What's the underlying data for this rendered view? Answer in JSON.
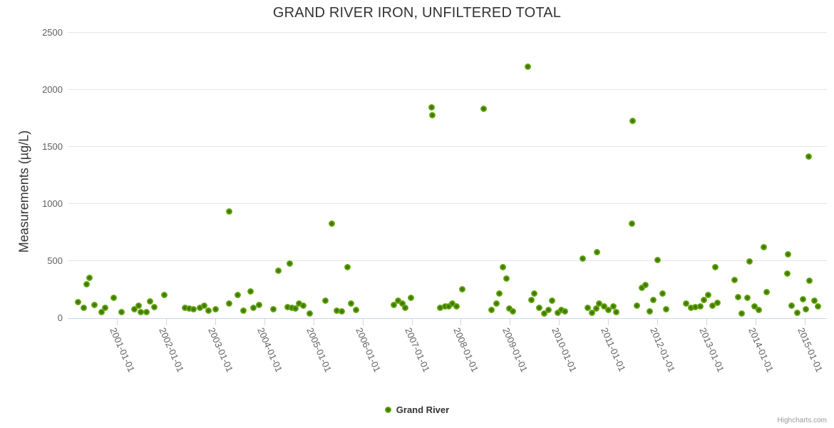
{
  "credits": {
    "label": "Highcharts.com"
  },
  "colors": {
    "marker_outer": "#7fbe1e",
    "marker_core": "#2d6a02",
    "gridline": "#e6e6e6",
    "axis_line": "#ccd6eb",
    "title_text": "#333333",
    "tick_label_text": "#606060",
    "credits_text": "#999999"
  },
  "chart_data": {
    "type": "scatter",
    "title": "GRAND RIVER IRON, UNFILTERED TOTAL",
    "xlabel": "",
    "ylabel": "Measurements (µg/L)",
    "ylim": [
      0,
      2500
    ],
    "y_ticks": [
      0,
      500,
      1000,
      1500,
      2000,
      2500
    ],
    "x_tick_labels": [
      "2001-01-01",
      "2002-01-01",
      "2003-01-01",
      "2004-01-01",
      "2005-01-01",
      "2006-01-01",
      "2007-01-01",
      "2008-01-01",
      "2009-01-01",
      "2010-01-01",
      "2011-01-01",
      "2012-01-01",
      "2013-01-01",
      "2014-01-01",
      "2015-01-01"
    ],
    "x_tick_years": [
      2001,
      2002,
      2003,
      2004,
      2005,
      2006,
      2007,
      2008,
      2009,
      2010,
      2011,
      2012,
      2013,
      2014,
      2015
    ],
    "x_range_years": [
      2000.0,
      15.45
    ],
    "grid": "horizontal",
    "legend": {
      "position": "bottom",
      "series_name": "Grand River"
    },
    "series": [
      {
        "name": "Grand River",
        "points": [
          [
            2000.21,
            135
          ],
          [
            2000.33,
            85
          ],
          [
            2000.39,
            290
          ],
          [
            2000.44,
            350
          ],
          [
            2000.55,
            110
          ],
          [
            2000.69,
            50
          ],
          [
            2000.76,
            85
          ],
          [
            2000.94,
            175
          ],
          [
            2001.1,
            50
          ],
          [
            2001.36,
            75
          ],
          [
            2001.44,
            105
          ],
          [
            2001.49,
            50
          ],
          [
            2001.61,
            48
          ],
          [
            2001.68,
            140
          ],
          [
            2001.76,
            88
          ],
          [
            2001.97,
            200
          ],
          [
            2002.39,
            83
          ],
          [
            2002.48,
            77
          ],
          [
            2002.56,
            72
          ],
          [
            2002.69,
            83
          ],
          [
            2002.78,
            104
          ],
          [
            2002.87,
            58
          ],
          [
            2003.01,
            69
          ],
          [
            2003.28,
            125
          ],
          [
            2003.29,
            930
          ],
          [
            2003.46,
            200
          ],
          [
            2003.58,
            58
          ],
          [
            2003.72,
            230
          ],
          [
            2003.78,
            83
          ],
          [
            2003.9,
            110
          ],
          [
            2004.19,
            69
          ],
          [
            2004.29,
            410
          ],
          [
            2004.47,
            89
          ],
          [
            2004.52,
            475
          ],
          [
            2004.56,
            83
          ],
          [
            2004.63,
            77
          ],
          [
            2004.71,
            120
          ],
          [
            2004.79,
            104
          ],
          [
            2004.93,
            36
          ],
          [
            2005.24,
            150
          ],
          [
            2005.37,
            820
          ],
          [
            2005.48,
            58
          ],
          [
            2005.58,
            52
          ],
          [
            2005.7,
            440
          ],
          [
            2005.76,
            120
          ],
          [
            2005.87,
            63
          ],
          [
            2006.63,
            110
          ],
          [
            2006.72,
            145
          ],
          [
            2006.81,
            121
          ],
          [
            2006.87,
            83
          ],
          [
            2006.98,
            175
          ],
          [
            2007.41,
            1840
          ],
          [
            2007.42,
            1770
          ],
          [
            2007.58,
            83
          ],
          [
            2007.68,
            98
          ],
          [
            2007.75,
            94
          ],
          [
            2007.82,
            120
          ],
          [
            2007.92,
            100
          ],
          [
            2008.03,
            245
          ],
          [
            2008.46,
            1830
          ],
          [
            2008.63,
            63
          ],
          [
            2008.72,
            123
          ],
          [
            2008.79,
            208
          ],
          [
            2008.85,
            440
          ],
          [
            2008.93,
            340
          ],
          [
            2008.99,
            77
          ],
          [
            2009.06,
            52
          ],
          [
            2009.37,
            2200
          ],
          [
            2009.43,
            155
          ],
          [
            2009.5,
            210
          ],
          [
            2009.59,
            83
          ],
          [
            2009.7,
            36
          ],
          [
            2009.78,
            63
          ],
          [
            2009.86,
            145
          ],
          [
            2009.97,
            42
          ],
          [
            2010.05,
            63
          ],
          [
            2010.12,
            52
          ],
          [
            2010.48,
            515
          ],
          [
            2010.59,
            83
          ],
          [
            2010.67,
            42
          ],
          [
            2010.76,
            77
          ],
          [
            2010.77,
            575
          ],
          [
            2010.82,
            125
          ],
          [
            2010.91,
            94
          ],
          [
            2011.0,
            63
          ],
          [
            2011.1,
            100
          ],
          [
            2011.17,
            46
          ],
          [
            2011.48,
            820
          ],
          [
            2011.49,
            1720
          ],
          [
            2011.58,
            105
          ],
          [
            2011.68,
            260
          ],
          [
            2011.76,
            285
          ],
          [
            2011.85,
            52
          ],
          [
            2011.92,
            155
          ],
          [
            2012.01,
            505
          ],
          [
            2012.1,
            210
          ],
          [
            2012.18,
            73
          ],
          [
            2012.59,
            120
          ],
          [
            2012.68,
            83
          ],
          [
            2012.78,
            90
          ],
          [
            2012.87,
            98
          ],
          [
            2012.95,
            155
          ],
          [
            2013.03,
            195
          ],
          [
            2013.12,
            105
          ],
          [
            2013.18,
            440
          ],
          [
            2013.22,
            130
          ],
          [
            2013.57,
            330
          ],
          [
            2013.64,
            180
          ],
          [
            2013.71,
            36
          ],
          [
            2013.83,
            175
          ],
          [
            2013.88,
            490
          ],
          [
            2013.98,
            98
          ],
          [
            2014.06,
            63
          ],
          [
            2014.17,
            615
          ],
          [
            2014.23,
            225
          ],
          [
            2014.65,
            385
          ],
          [
            2014.66,
            555
          ],
          [
            2014.73,
            105
          ],
          [
            2014.85,
            42
          ],
          [
            2014.97,
            160
          ],
          [
            2015.02,
            73
          ],
          [
            2015.08,
            1410
          ],
          [
            2015.09,
            320
          ],
          [
            2015.2,
            150
          ],
          [
            2015.27,
            98
          ]
        ]
      }
    ]
  }
}
